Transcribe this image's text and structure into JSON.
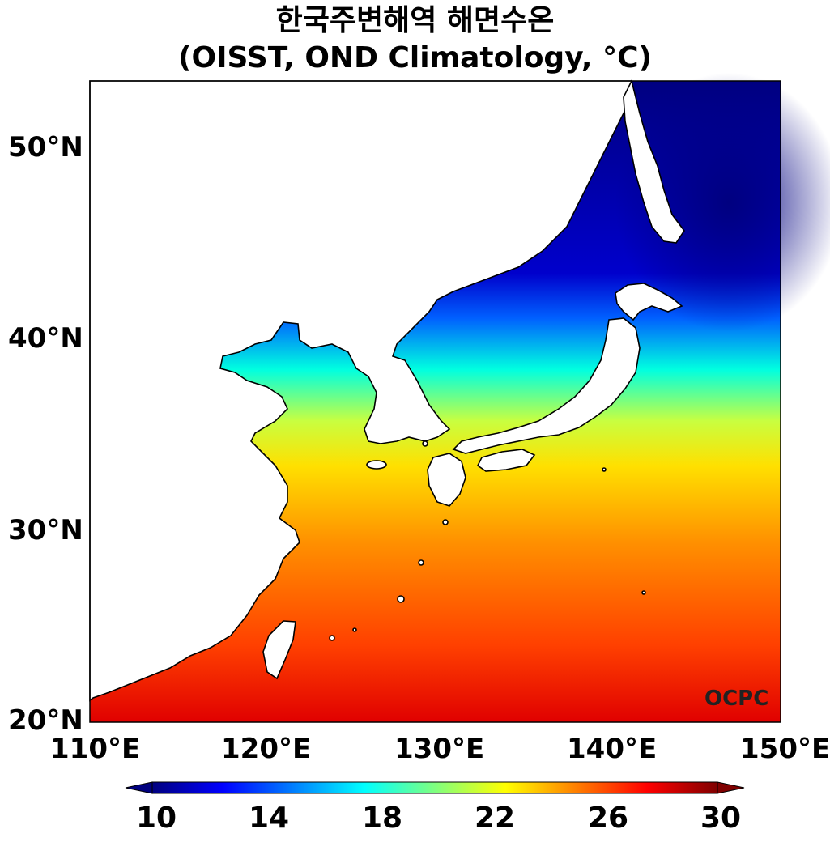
{
  "title": {
    "line1": "한국주변해역 해면수온",
    "line2": "(OISST, OND Climatology, °C)"
  },
  "credit": "OCPC",
  "map": {
    "lon_range": [
      110,
      150
    ],
    "lat_range": [
      20,
      53.5
    ],
    "lat_ticks": [
      {
        "value": 50,
        "label": "50°N"
      },
      {
        "value": 40,
        "label": "40°N"
      },
      {
        "value": 30,
        "label": "30°N"
      },
      {
        "value": 20,
        "label": "20°N"
      }
    ],
    "lon_ticks": [
      {
        "value": 110,
        "label": "110°E"
      },
      {
        "value": 120,
        "label": "120°E"
      },
      {
        "value": 130,
        "label": "130°E"
      },
      {
        "value": 140,
        "label": "140°E"
      },
      {
        "value": 150,
        "label": "150°E"
      }
    ]
  },
  "colorbar": {
    "min": 10,
    "max": 30,
    "extend": "both",
    "colormap": "jet",
    "ticks": [
      "10",
      "14",
      "18",
      "22",
      "26",
      "30"
    ],
    "colors": [
      "#00007f",
      "#0000ff",
      "#007fff",
      "#00ffff",
      "#7fff7f",
      "#ffff00",
      "#ff7f00",
      "#ff0000",
      "#7f0000"
    ]
  }
}
